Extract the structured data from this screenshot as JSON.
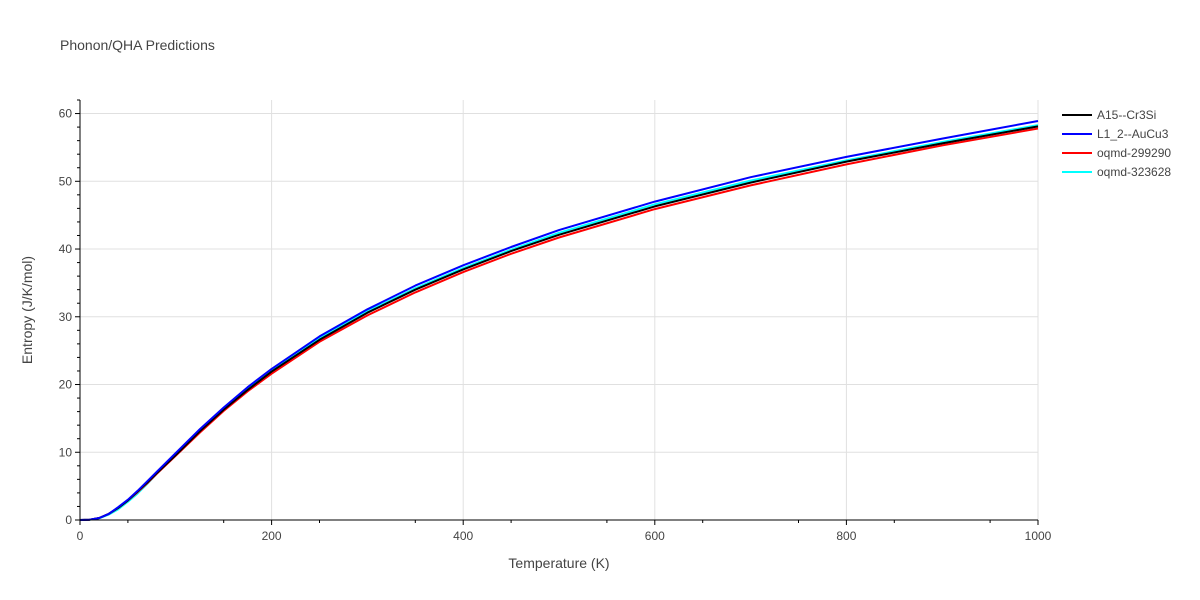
{
  "chart_data": {
    "type": "line",
    "title": "Phonon/QHA Predictions",
    "xlabel": "Temperature (K)",
    "ylabel": "Entropy (J/K/mol)",
    "xlim": [
      0,
      1000
    ],
    "ylim": [
      0,
      62
    ],
    "x_ticks": [
      0,
      200,
      400,
      600,
      800,
      1000
    ],
    "y_ticks": [
      0,
      10,
      20,
      30,
      40,
      50,
      60
    ],
    "grid": true,
    "legend_position": "right",
    "x": [
      0,
      10,
      20,
      30,
      40,
      50,
      60,
      70,
      80,
      100,
      125,
      150,
      175,
      200,
      250,
      300,
      350,
      400,
      450,
      500,
      600,
      700,
      800,
      900,
      1000
    ],
    "series": [
      {
        "name": "A15--Cr3Si",
        "color": "#000000",
        "values": [
          0,
          0.05,
          0.3,
          0.9,
          1.8,
          2.9,
          4.2,
          5.5,
          6.9,
          9.6,
          13.1,
          16.3,
          19.2,
          21.9,
          26.6,
          30.6,
          34.0,
          37.0,
          39.7,
          42.1,
          46.3,
          49.8,
          52.9,
          55.6,
          58.1
        ]
      },
      {
        "name": "L1_2--AuCu3",
        "color": "#0000ff",
        "values": [
          0,
          0.05,
          0.3,
          0.9,
          1.9,
          3.0,
          4.3,
          5.7,
          7.1,
          9.9,
          13.4,
          16.6,
          19.6,
          22.3,
          27.1,
          31.1,
          34.6,
          37.6,
          40.3,
          42.8,
          47.0,
          50.6,
          53.6,
          56.3,
          58.9
        ]
      },
      {
        "name": "oqmd-299290",
        "color": "#ff0000",
        "values": [
          0,
          0.05,
          0.3,
          0.9,
          1.8,
          2.9,
          4.1,
          5.4,
          6.8,
          9.5,
          12.9,
          16.1,
          19.0,
          21.6,
          26.3,
          30.2,
          33.6,
          36.6,
          39.3,
          41.7,
          45.9,
          49.4,
          52.5,
          55.3,
          57.8
        ]
      },
      {
        "name": "oqmd-323628",
        "color": "#00ffff",
        "values": [
          0,
          0.04,
          0.25,
          0.8,
          1.6,
          2.7,
          3.9,
          5.3,
          6.8,
          9.6,
          13.1,
          16.3,
          19.3,
          22.0,
          26.8,
          30.8,
          34.2,
          37.2,
          39.9,
          42.4,
          46.6,
          50.1,
          53.1,
          55.8,
          58.3
        ]
      }
    ]
  }
}
